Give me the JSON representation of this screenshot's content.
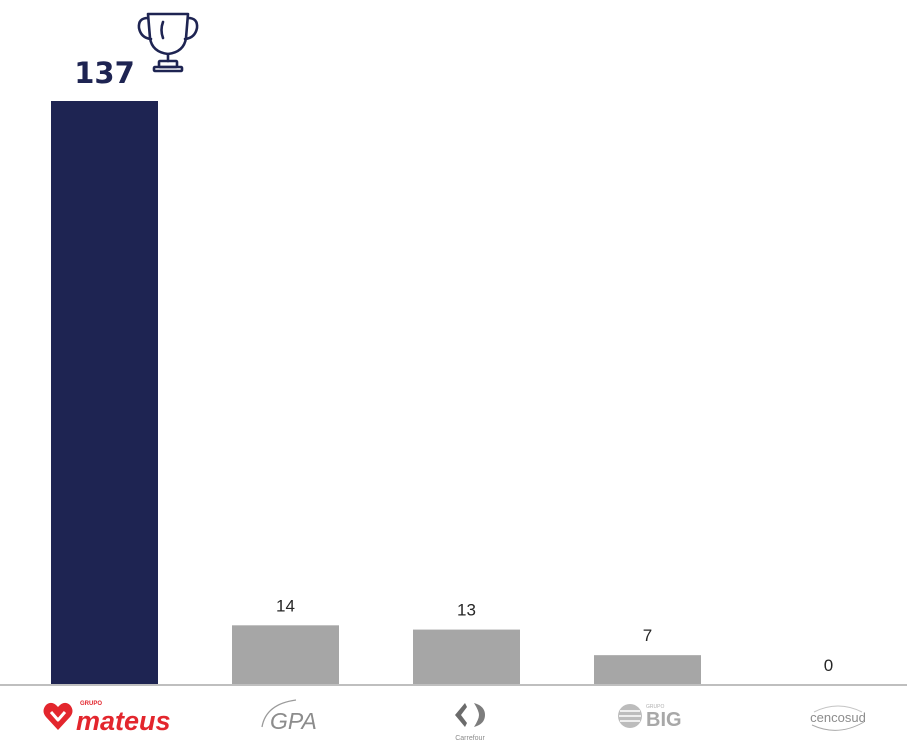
{
  "chart_data": {
    "type": "bar",
    "categories": [
      "mateus",
      "GPA",
      "Carrefour",
      "BIG",
      "cencosud"
    ],
    "values": [
      137,
      14,
      13,
      7,
      0
    ],
    "data_labels": [
      "137",
      "14",
      "13",
      "7",
      "0"
    ],
    "ylim": [
      0,
      137
    ],
    "grid": false,
    "legend": "none",
    "colors": {
      "highlight": "#1e2452",
      "default": "#a6a6a6",
      "axis": "#bfbfbf"
    },
    "highlight_index": 0,
    "highlight_icon": "trophy-icon"
  },
  "brands": {
    "mateus": {
      "prefix": "GRUPO",
      "name": "mateus",
      "color": "#e3262d"
    },
    "gpa": {
      "name": "GPA"
    },
    "carrefour": {
      "name": "Carrefour"
    },
    "big": {
      "prefix": "GRUPO",
      "name": "BIG"
    },
    "cencosud": {
      "name": "cencosud"
    }
  }
}
